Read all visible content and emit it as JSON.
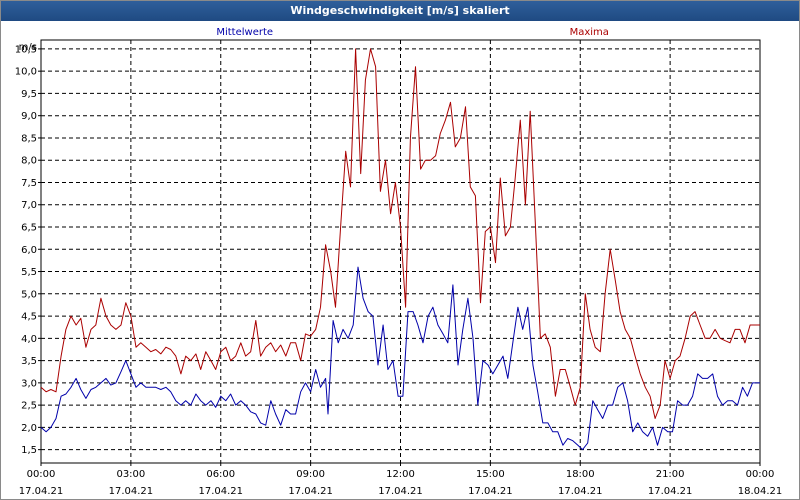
{
  "window": {
    "title": "Windgeschwindigkeit [m/s] skaliert"
  },
  "chart_data": {
    "type": "line",
    "y_unit": "m/s",
    "ylim": [
      1.2,
      10.7
    ],
    "yticks": [
      1.5,
      2.0,
      2.5,
      3.0,
      3.5,
      4.0,
      4.5,
      5.0,
      5.5,
      6.0,
      6.5,
      7.0,
      7.5,
      8.0,
      8.5,
      9.0,
      9.5,
      10.0,
      10.5
    ],
    "ytick_labels": [
      "1,5",
      "2,0",
      "2,5",
      "3,0",
      "3,5",
      "4,0",
      "4,5",
      "5,0",
      "5,5",
      "6,0",
      "6,5",
      "7,0",
      "7,5",
      "8,0",
      "8,5",
      "9,0",
      "9,5",
      "10,0",
      "10,5"
    ],
    "xlim": [
      0,
      24
    ],
    "xticks": [
      0,
      3,
      6,
      9,
      12,
      15,
      18,
      21,
      24
    ],
    "xtick_labels": [
      {
        "time": "00:00",
        "date": "17.04.21"
      },
      {
        "time": "03:00",
        "date": "17.04.21"
      },
      {
        "time": "06:00",
        "date": "17.04.21"
      },
      {
        "time": "09:00",
        "date": "17.04.21"
      },
      {
        "time": "12:00",
        "date": "17.04.21"
      },
      {
        "time": "15:00",
        "date": "17.04.21"
      },
      {
        "time": "18:00",
        "date": "17.04.21"
      },
      {
        "time": "21:00",
        "date": "17.04.21"
      },
      {
        "time": "00:00",
        "date": "18.04.21"
      }
    ],
    "grid": true,
    "legend_position": "top",
    "series": [
      {
        "name": "Mittelwerte",
        "color": "#0000aa",
        "points": [
          [
            0,
            2.0
          ],
          [
            0.17,
            1.9
          ],
          [
            0.33,
            2.0
          ],
          [
            0.5,
            2.2
          ],
          [
            0.67,
            2.7
          ],
          [
            0.83,
            2.75
          ],
          [
            1.0,
            2.9
          ],
          [
            1.17,
            3.1
          ],
          [
            1.33,
            2.85
          ],
          [
            1.5,
            2.65
          ],
          [
            1.67,
            2.85
          ],
          [
            1.83,
            2.9
          ],
          [
            2.0,
            3.0
          ],
          [
            2.17,
            3.1
          ],
          [
            2.33,
            2.95
          ],
          [
            2.5,
            3.0
          ],
          [
            2.67,
            3.25
          ],
          [
            2.83,
            3.5
          ],
          [
            3.0,
            3.2
          ],
          [
            3.17,
            2.9
          ],
          [
            3.33,
            3.0
          ],
          [
            3.5,
            2.9
          ],
          [
            3.67,
            2.9
          ],
          [
            3.83,
            2.9
          ],
          [
            4.0,
            2.85
          ],
          [
            4.17,
            2.9
          ],
          [
            4.33,
            2.8
          ],
          [
            4.5,
            2.6
          ],
          [
            4.67,
            2.5
          ],
          [
            4.83,
            2.6
          ],
          [
            5.0,
            2.5
          ],
          [
            5.17,
            2.75
          ],
          [
            5.33,
            2.6
          ],
          [
            5.5,
            2.5
          ],
          [
            5.67,
            2.6
          ],
          [
            5.83,
            2.45
          ],
          [
            6.0,
            2.7
          ],
          [
            6.17,
            2.6
          ],
          [
            6.33,
            2.75
          ],
          [
            6.5,
            2.5
          ],
          [
            6.67,
            2.6
          ],
          [
            6.83,
            2.5
          ],
          [
            7.0,
            2.35
          ],
          [
            7.17,
            2.3
          ],
          [
            7.33,
            2.1
          ],
          [
            7.5,
            2.05
          ],
          [
            7.67,
            2.6
          ],
          [
            7.83,
            2.3
          ],
          [
            8.0,
            2.05
          ],
          [
            8.17,
            2.4
          ],
          [
            8.33,
            2.3
          ],
          [
            8.5,
            2.3
          ],
          [
            8.67,
            2.8
          ],
          [
            8.83,
            3.0
          ],
          [
            9.0,
            2.8
          ],
          [
            9.17,
            3.3
          ],
          [
            9.33,
            2.9
          ],
          [
            9.5,
            3.1
          ],
          [
            9.58,
            2.3
          ],
          [
            9.75,
            4.4
          ],
          [
            9.92,
            3.9
          ],
          [
            10.08,
            4.2
          ],
          [
            10.25,
            4.0
          ],
          [
            10.42,
            4.3
          ],
          [
            10.58,
            5.6
          ],
          [
            10.75,
            4.9
          ],
          [
            10.92,
            4.6
          ],
          [
            11.08,
            4.5
          ],
          [
            11.25,
            3.4
          ],
          [
            11.42,
            4.3
          ],
          [
            11.58,
            3.3
          ],
          [
            11.75,
            3.5
          ],
          [
            11.92,
            2.7
          ],
          [
            12.08,
            2.7
          ],
          [
            12.25,
            4.6
          ],
          [
            12.42,
            4.6
          ],
          [
            12.58,
            4.3
          ],
          [
            12.75,
            3.9
          ],
          [
            12.92,
            4.5
          ],
          [
            13.08,
            4.7
          ],
          [
            13.25,
            4.3
          ],
          [
            13.42,
            4.1
          ],
          [
            13.58,
            3.9
          ],
          [
            13.75,
            5.2
          ],
          [
            13.92,
            3.4
          ],
          [
            14.08,
            4.2
          ],
          [
            14.25,
            4.9
          ],
          [
            14.42,
            4.0
          ],
          [
            14.58,
            2.5
          ],
          [
            14.75,
            3.5
          ],
          [
            14.92,
            3.4
          ],
          [
            15.08,
            3.2
          ],
          [
            15.25,
            3.4
          ],
          [
            15.42,
            3.6
          ],
          [
            15.58,
            3.1
          ],
          [
            15.75,
            3.9
          ],
          [
            15.92,
            4.7
          ],
          [
            16.08,
            4.2
          ],
          [
            16.25,
            4.7
          ],
          [
            16.42,
            3.4
          ],
          [
            16.58,
            2.8
          ],
          [
            16.75,
            2.1
          ],
          [
            16.92,
            2.1
          ],
          [
            17.08,
            1.9
          ],
          [
            17.25,
            1.9
          ],
          [
            17.42,
            1.6
          ],
          [
            17.58,
            1.75
          ],
          [
            17.75,
            1.7
          ],
          [
            17.92,
            1.6
          ],
          [
            18.08,
            1.5
          ],
          [
            18.25,
            1.65
          ],
          [
            18.42,
            2.6
          ],
          [
            18.58,
            2.4
          ],
          [
            18.75,
            2.2
          ],
          [
            18.92,
            2.5
          ],
          [
            19.08,
            2.5
          ],
          [
            19.25,
            2.9
          ],
          [
            19.42,
            3.0
          ],
          [
            19.58,
            2.6
          ],
          [
            19.75,
            1.9
          ],
          [
            19.92,
            2.1
          ],
          [
            20.08,
            1.9
          ],
          [
            20.25,
            1.8
          ],
          [
            20.42,
            2.0
          ],
          [
            20.58,
            1.6
          ],
          [
            20.75,
            2.0
          ],
          [
            20.92,
            1.9
          ],
          [
            21.08,
            1.9
          ],
          [
            21.25,
            2.6
          ],
          [
            21.42,
            2.5
          ],
          [
            21.58,
            2.5
          ],
          [
            21.75,
            2.7
          ],
          [
            21.92,
            3.2
          ],
          [
            22.08,
            3.1
          ],
          [
            22.25,
            3.1
          ],
          [
            22.42,
            3.2
          ],
          [
            22.58,
            2.7
          ],
          [
            22.75,
            2.5
          ],
          [
            22.92,
            2.6
          ],
          [
            23.08,
            2.6
          ],
          [
            23.25,
            2.5
          ],
          [
            23.42,
            2.9
          ],
          [
            23.58,
            2.7
          ],
          [
            23.75,
            3.0
          ],
          [
            23.92,
            3.0
          ],
          [
            24.0,
            3.0
          ]
        ]
      },
      {
        "name": "Maxima",
        "color": "#aa0000",
        "points": [
          [
            0,
            2.9
          ],
          [
            0.17,
            2.8
          ],
          [
            0.33,
            2.85
          ],
          [
            0.5,
            2.8
          ],
          [
            0.67,
            3.6
          ],
          [
            0.83,
            4.2
          ],
          [
            1.0,
            4.5
          ],
          [
            1.17,
            4.3
          ],
          [
            1.33,
            4.45
          ],
          [
            1.5,
            3.8
          ],
          [
            1.67,
            4.2
          ],
          [
            1.83,
            4.3
          ],
          [
            2.0,
            4.9
          ],
          [
            2.17,
            4.5
          ],
          [
            2.33,
            4.3
          ],
          [
            2.5,
            4.2
          ],
          [
            2.67,
            4.3
          ],
          [
            2.83,
            4.8
          ],
          [
            3.0,
            4.5
          ],
          [
            3.17,
            3.8
          ],
          [
            3.33,
            3.9
          ],
          [
            3.5,
            3.8
          ],
          [
            3.67,
            3.7
          ],
          [
            3.83,
            3.75
          ],
          [
            4.0,
            3.65
          ],
          [
            4.17,
            3.8
          ],
          [
            4.33,
            3.75
          ],
          [
            4.5,
            3.6
          ],
          [
            4.67,
            3.2
          ],
          [
            4.83,
            3.6
          ],
          [
            5.0,
            3.5
          ],
          [
            5.17,
            3.65
          ],
          [
            5.33,
            3.3
          ],
          [
            5.5,
            3.7
          ],
          [
            5.67,
            3.5
          ],
          [
            5.83,
            3.3
          ],
          [
            6.0,
            3.7
          ],
          [
            6.17,
            3.8
          ],
          [
            6.33,
            3.5
          ],
          [
            6.5,
            3.6
          ],
          [
            6.67,
            3.9
          ],
          [
            6.83,
            3.6
          ],
          [
            7.0,
            3.7
          ],
          [
            7.17,
            4.4
          ],
          [
            7.33,
            3.6
          ],
          [
            7.5,
            3.8
          ],
          [
            7.67,
            3.9
          ],
          [
            7.83,
            3.7
          ],
          [
            8.0,
            3.85
          ],
          [
            8.17,
            3.6
          ],
          [
            8.33,
            3.9
          ],
          [
            8.5,
            3.9
          ],
          [
            8.67,
            3.5
          ],
          [
            8.83,
            4.1
          ],
          [
            9.0,
            4.05
          ],
          [
            9.17,
            4.2
          ],
          [
            9.33,
            4.7
          ],
          [
            9.5,
            6.1
          ],
          [
            9.67,
            5.5
          ],
          [
            9.83,
            4.7
          ],
          [
            10.0,
            6.5
          ],
          [
            10.17,
            8.2
          ],
          [
            10.33,
            7.4
          ],
          [
            10.5,
            10.5
          ],
          [
            10.67,
            7.7
          ],
          [
            10.83,
            9.8
          ],
          [
            11.0,
            10.5
          ],
          [
            11.17,
            10.1
          ],
          [
            11.33,
            7.3
          ],
          [
            11.5,
            8.0
          ],
          [
            11.67,
            6.8
          ],
          [
            11.83,
            7.5
          ],
          [
            12.0,
            6.5
          ],
          [
            12.17,
            4.7
          ],
          [
            12.33,
            8.5
          ],
          [
            12.5,
            10.1
          ],
          [
            12.67,
            7.8
          ],
          [
            12.83,
            8.0
          ],
          [
            13.0,
            8.0
          ],
          [
            13.17,
            8.1
          ],
          [
            13.33,
            8.6
          ],
          [
            13.5,
            8.9
          ],
          [
            13.67,
            9.3
          ],
          [
            13.83,
            8.3
          ],
          [
            14.0,
            8.5
          ],
          [
            14.17,
            9.2
          ],
          [
            14.33,
            7.4
          ],
          [
            14.5,
            7.2
          ],
          [
            14.67,
            4.8
          ],
          [
            14.83,
            6.4
          ],
          [
            15.0,
            6.5
          ],
          [
            15.17,
            5.7
          ],
          [
            15.33,
            7.6
          ],
          [
            15.5,
            6.3
          ],
          [
            15.67,
            6.5
          ],
          [
            15.83,
            7.6
          ],
          [
            16.0,
            8.9
          ],
          [
            16.17,
            7.0
          ],
          [
            16.33,
            9.1
          ],
          [
            16.5,
            6.6
          ],
          [
            16.67,
            4.0
          ],
          [
            16.83,
            4.1
          ],
          [
            17.0,
            3.8
          ],
          [
            17.17,
            2.7
          ],
          [
            17.33,
            3.3
          ],
          [
            17.5,
            3.3
          ],
          [
            17.67,
            2.9
          ],
          [
            17.83,
            2.5
          ],
          [
            18.0,
            2.9
          ],
          [
            18.17,
            5.0
          ],
          [
            18.33,
            4.2
          ],
          [
            18.5,
            3.8
          ],
          [
            18.67,
            3.7
          ],
          [
            18.83,
            5.0
          ],
          [
            19.0,
            6.0
          ],
          [
            19.17,
            5.3
          ],
          [
            19.33,
            4.6
          ],
          [
            19.5,
            4.2
          ],
          [
            19.67,
            4.0
          ],
          [
            19.83,
            3.6
          ],
          [
            20.0,
            3.2
          ],
          [
            20.17,
            2.9
          ],
          [
            20.33,
            2.7
          ],
          [
            20.5,
            2.2
          ],
          [
            20.67,
            2.5
          ],
          [
            20.83,
            3.5
          ],
          [
            21.0,
            3.1
          ],
          [
            21.17,
            3.5
          ],
          [
            21.33,
            3.6
          ],
          [
            21.5,
            4.0
          ],
          [
            21.67,
            4.5
          ],
          [
            21.83,
            4.6
          ],
          [
            22.0,
            4.3
          ],
          [
            22.17,
            4.0
          ],
          [
            22.33,
            4.0
          ],
          [
            22.5,
            4.2
          ],
          [
            22.67,
            4.0
          ],
          [
            22.83,
            3.95
          ],
          [
            23.0,
            3.9
          ],
          [
            23.17,
            4.2
          ],
          [
            23.33,
            4.2
          ],
          [
            23.5,
            3.9
          ],
          [
            23.67,
            4.3
          ],
          [
            23.83,
            4.3
          ],
          [
            24.0,
            4.3
          ]
        ]
      }
    ]
  }
}
